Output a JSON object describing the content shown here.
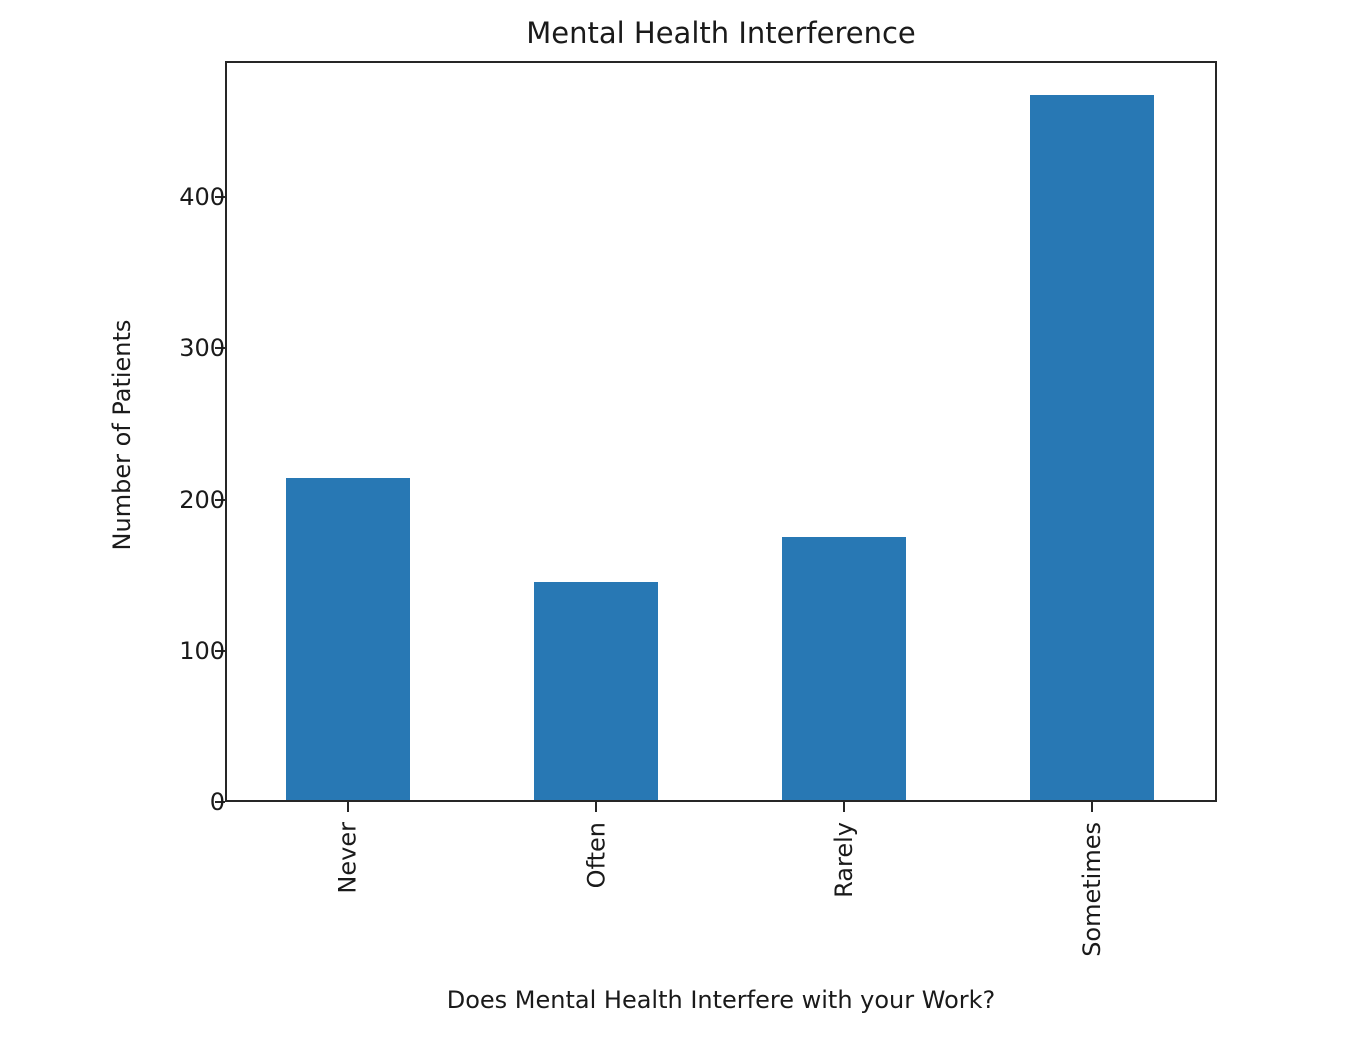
{
  "chart_data": {
    "type": "bar",
    "title": "Mental Health Interference",
    "xlabel": "Does Mental Health Interfere with your Work?",
    "ylabel": "Number of Patients",
    "categories": [
      "Never",
      "Often",
      "Rarely",
      "Sometimes"
    ],
    "values": [
      213,
      144,
      174,
      466
    ],
    "yticks": [
      0,
      100,
      200,
      300,
      400
    ],
    "ylim": [
      0,
      490
    ],
    "grid": false,
    "legend": null,
    "bar_color": "#2878b4"
  },
  "labels": {
    "title": "Mental Health Interference",
    "xlabel": "Does Mental Health Interfere with your Work?",
    "ylabel": "Number of Patients",
    "yticks": [
      "0",
      "100",
      "200",
      "300",
      "400"
    ],
    "xticks": [
      "Never",
      "Often",
      "Rarely",
      "Sometimes"
    ]
  }
}
